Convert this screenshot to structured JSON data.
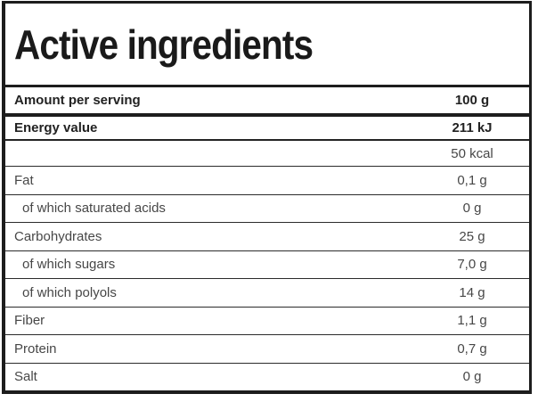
{
  "header": {
    "title": "Active ingredients"
  },
  "serving": {
    "label": "Amount per serving",
    "value": "100 g"
  },
  "rows": [
    {
      "label": "Energy value",
      "value": "211 kJ"
    },
    {
      "label": "",
      "value": "50 kcal"
    },
    {
      "label": "Fat",
      "value": "0,1 g"
    },
    {
      "label": "of which saturated acids",
      "value": "0 g"
    },
    {
      "label": "Carbohydrates",
      "value": "25 g"
    },
    {
      "label": "of which sugars",
      "value": "7,0 g"
    },
    {
      "label": "of which polyols",
      "value": "14 g"
    },
    {
      "label": "Fiber",
      "value": "1,1 g"
    },
    {
      "label": "Protein",
      "value": "0,7 g"
    },
    {
      "label": "Salt",
      "value": "0 g"
    }
  ],
  "colors": {
    "border": "#1d1d1d",
    "text_regular": "#474747",
    "text_bold": "#222222",
    "background": "#ffffff"
  }
}
